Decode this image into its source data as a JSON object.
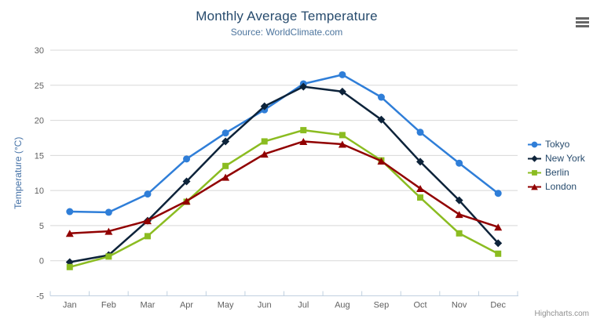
{
  "chart_data": {
    "type": "line",
    "title": "Monthly Average Temperature",
    "subtitle": "Source: WorldClimate.com",
    "categories": [
      "Jan",
      "Feb",
      "Mar",
      "Apr",
      "May",
      "Jun",
      "Jul",
      "Aug",
      "Sep",
      "Oct",
      "Nov",
      "Dec"
    ],
    "xlabel": "",
    "ylabel": "Temperature (°C)",
    "ylim": [
      -5,
      30
    ],
    "ytick_step": 5,
    "grid": true,
    "legend_position": "right",
    "series": [
      {
        "name": "Tokyo",
        "color": "#2f7ed8",
        "marker": "circle",
        "values": [
          7.0,
          6.9,
          9.5,
          14.5,
          18.2,
          21.5,
          25.2,
          26.5,
          23.3,
          18.3,
          13.9,
          9.6
        ]
      },
      {
        "name": "New York",
        "color": "#0d233a",
        "marker": "diamond",
        "values": [
          -0.2,
          0.8,
          5.7,
          11.3,
          17.0,
          22.0,
          24.8,
          24.1,
          20.1,
          14.1,
          8.6,
          2.5
        ]
      },
      {
        "name": "Berlin",
        "color": "#8bbc21",
        "marker": "square",
        "values": [
          -0.9,
          0.6,
          3.5,
          8.4,
          13.5,
          17.0,
          18.6,
          17.9,
          14.3,
          9.0,
          3.9,
          1.0
        ]
      },
      {
        "name": "London",
        "color": "#910000",
        "marker": "triangle",
        "values": [
          3.9,
          4.2,
          5.7,
          8.5,
          11.9,
          15.2,
          17.0,
          16.6,
          14.2,
          10.3,
          6.6,
          4.8
        ]
      }
    ],
    "credits": "Highcharts.com"
  },
  "export_menu": {
    "icon": "hamburger-icon"
  }
}
